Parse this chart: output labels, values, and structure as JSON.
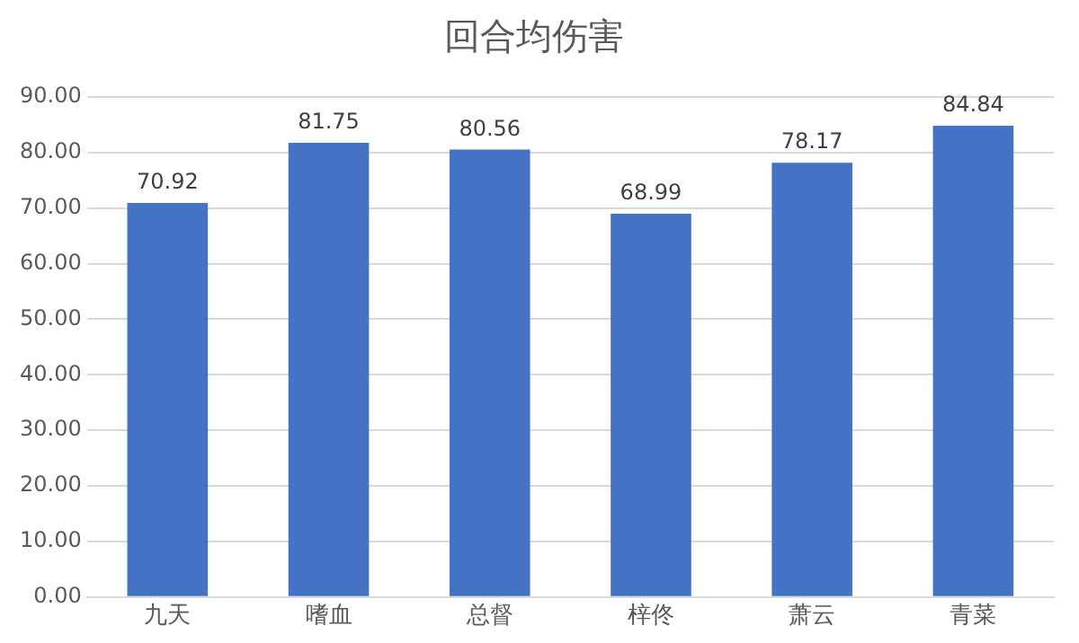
{
  "chart_data": {
    "type": "bar",
    "title": "回合均伤害",
    "categories": [
      "九天",
      "嗜血",
      "总督",
      "梓佟",
      "萧云",
      "青菜"
    ],
    "values": [
      70.92,
      81.75,
      80.56,
      68.99,
      78.17,
      84.84
    ],
    "color": "#4472c4",
    "ylim": [
      0,
      90
    ],
    "yticks": [
      {
        "value": 0,
        "label": "0.00"
      },
      {
        "value": 10,
        "label": "10.00"
      },
      {
        "value": 20,
        "label": "20.00"
      },
      {
        "value": 30,
        "label": "30.00"
      },
      {
        "value": 40,
        "label": "40.00"
      },
      {
        "value": 50,
        "label": "50.00"
      },
      {
        "value": 60,
        "label": "60.00"
      },
      {
        "value": 70,
        "label": "70.00"
      },
      {
        "value": 80,
        "label": "80.00"
      },
      {
        "value": 90,
        "label": "90.00"
      }
    ],
    "grid": "y",
    "data_labels": true
  }
}
